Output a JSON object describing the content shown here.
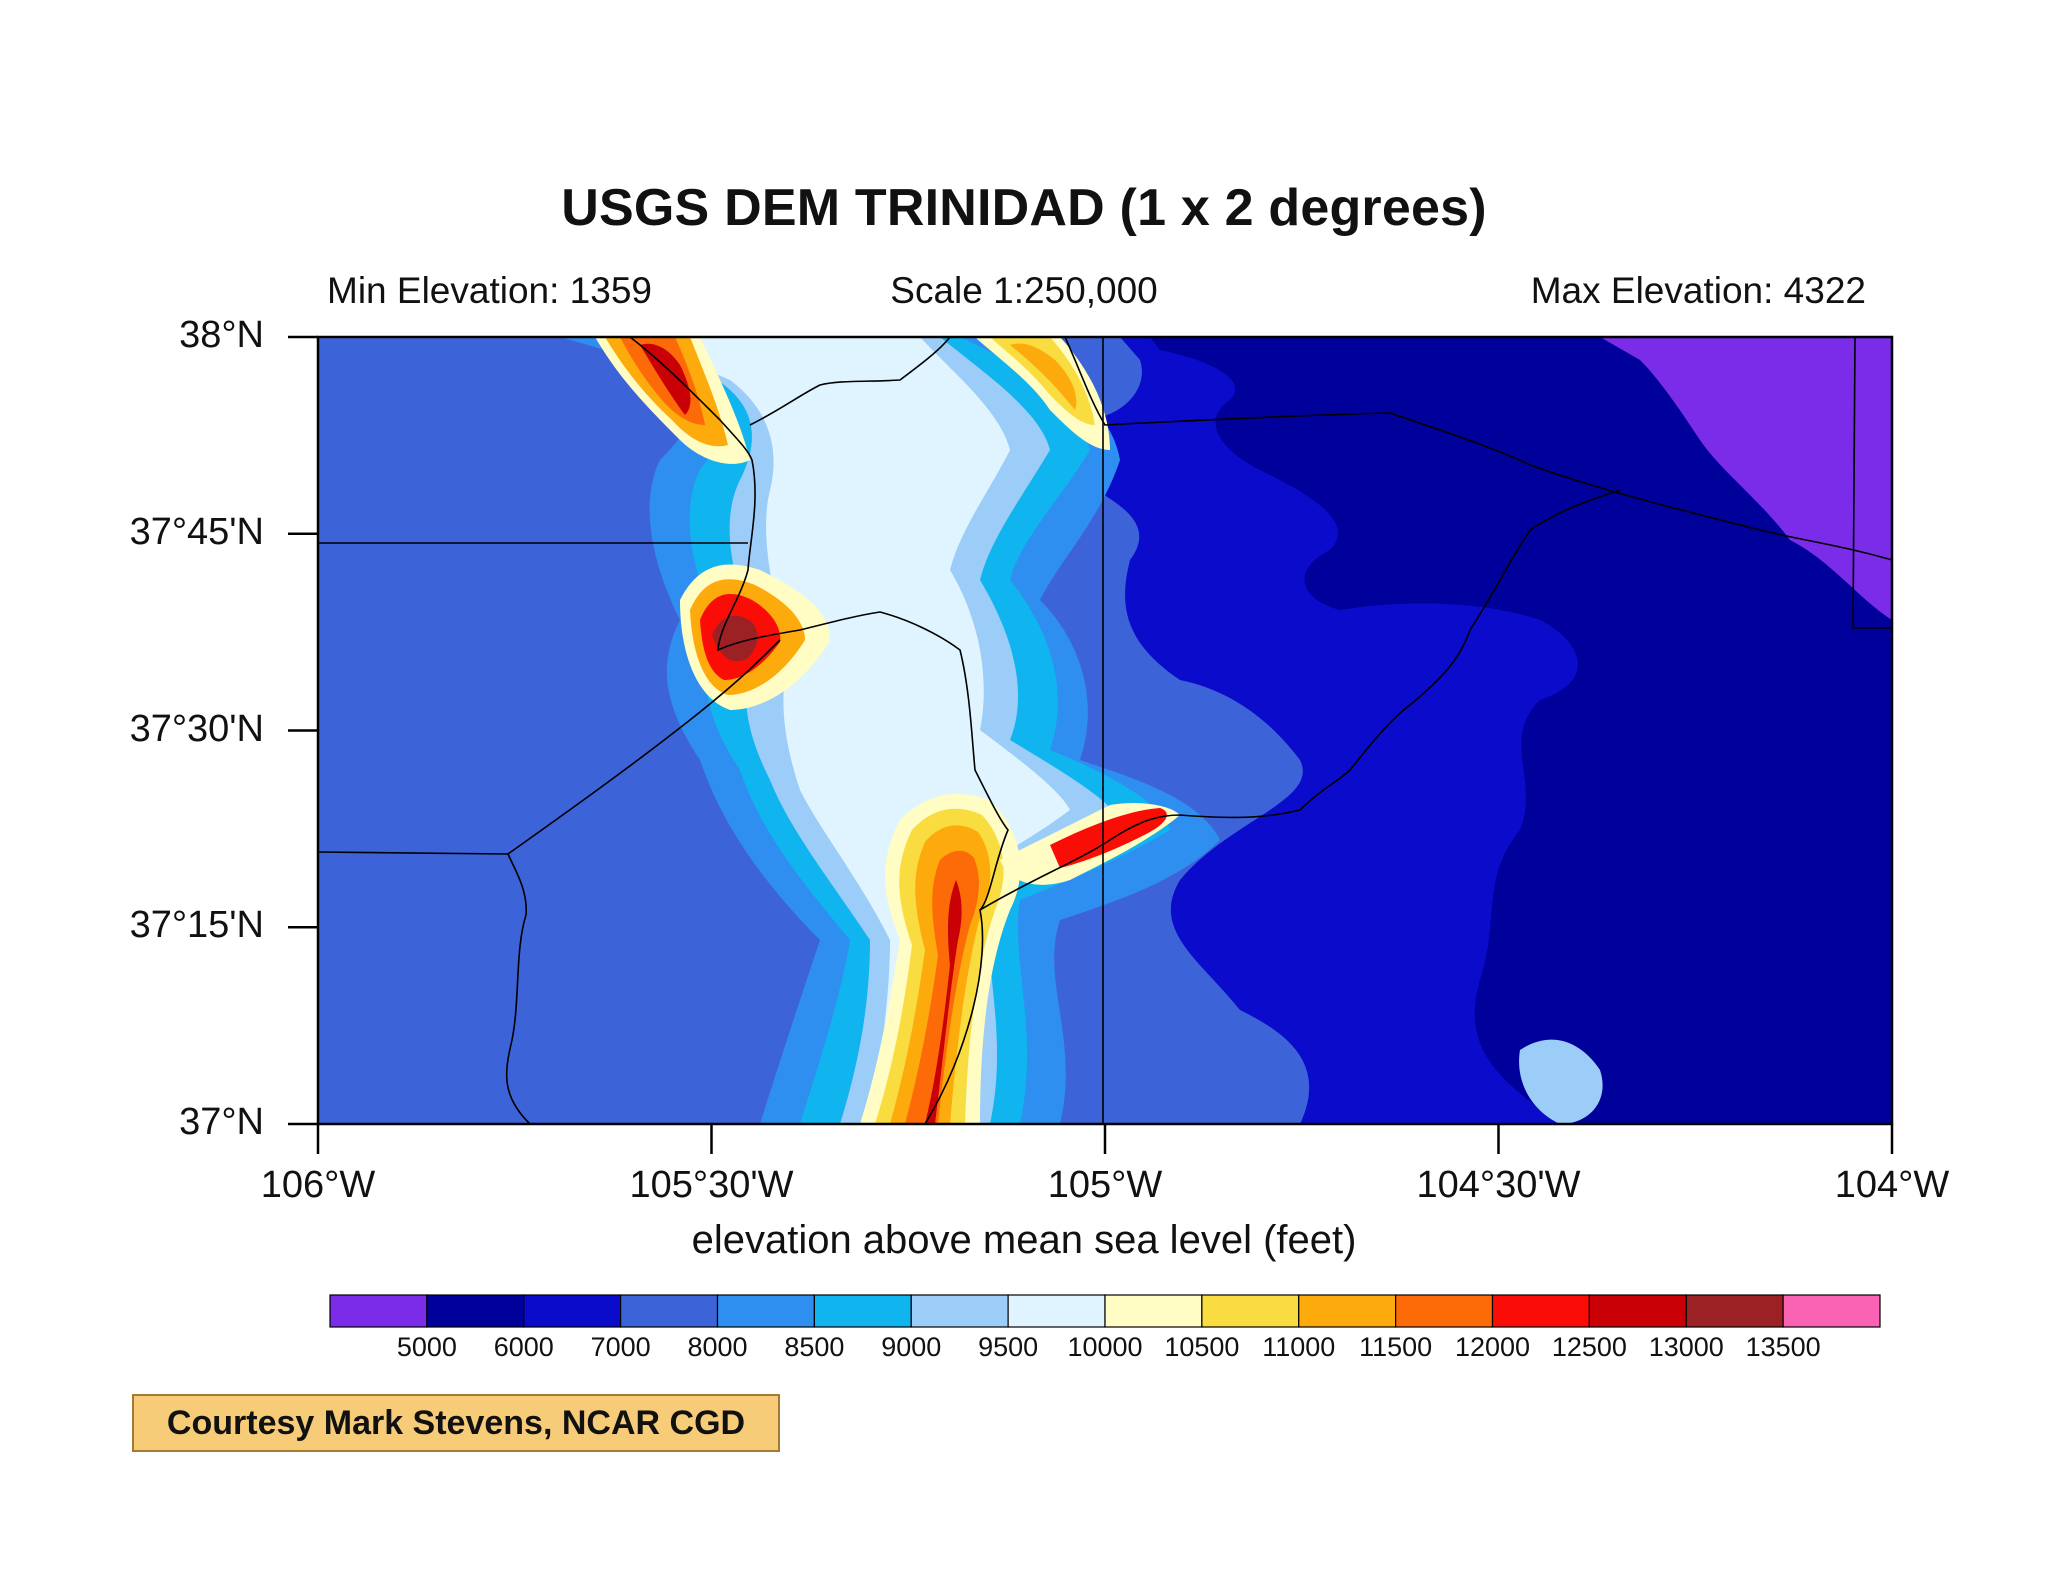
{
  "title": "USGS DEM TRINIDAD (1 x 2 degrees)",
  "subtitles": {
    "left": "Min Elevation: 1359",
    "center": "Scale 1:250,000",
    "right": "Max Elevation: 4322"
  },
  "axes": {
    "lon_range": [
      -106,
      -104
    ],
    "lat_range": [
      37,
      38
    ],
    "lat_ticks": [
      {
        "value": 38,
        "label": "38°N"
      },
      {
        "value": 37.75,
        "label": "37°45'N"
      },
      {
        "value": 37.5,
        "label": "37°30'N"
      },
      {
        "value": 37.25,
        "label": "37°15'N"
      },
      {
        "value": 37,
        "label": "37°N"
      }
    ],
    "lon_ticks": [
      {
        "value": -106,
        "label": "106°W"
      },
      {
        "value": -105.5,
        "label": "105°30'W"
      },
      {
        "value": -105,
        "label": "105°W"
      },
      {
        "value": -104.5,
        "label": "104°30'W"
      },
      {
        "value": -104,
        "label": "104°W"
      }
    ],
    "xlabel": "elevation above mean sea level (feet)"
  },
  "colorbar": {
    "colors": [
      "#7b2ce8",
      "#00009a",
      "#0b0bcc",
      "#3d63d8",
      "#2f8ff0",
      "#10b4ee",
      "#9ccdf8",
      "#dff4ff",
      "#fffcc4",
      "#f9dc40",
      "#fcaa0c",
      "#fd6a08",
      "#fb0d07",
      "#c90005",
      "#9c2124",
      "#fa63b4"
    ],
    "labels": [
      "5000",
      "6000",
      "7000",
      "8000",
      "8500",
      "9000",
      "9500",
      "10000",
      "10500",
      "11000",
      "11500",
      "12000",
      "12500",
      "13000",
      "13500"
    ]
  },
  "credit": "Courtesy Mark Stevens, NCAR CGD"
}
